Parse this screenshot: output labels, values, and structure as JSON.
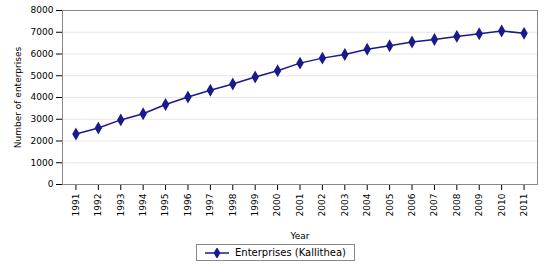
{
  "chart_data": {
    "type": "line",
    "x": [
      1991,
      1992,
      1993,
      1994,
      1995,
      1996,
      1997,
      1998,
      1999,
      2000,
      2001,
      2002,
      2003,
      2004,
      2005,
      2006,
      2007,
      2008,
      2009,
      2010,
      2011
    ],
    "series": [
      {
        "name": "Enterprises (Kallithea)",
        "color": "#1a1a8c",
        "marker": "diamond",
        "values": [
          2320,
          2600,
          2970,
          3250,
          3680,
          4020,
          4330,
          4620,
          4940,
          5230,
          5580,
          5810,
          5980,
          6220,
          6380,
          6550,
          6670,
          6810,
          6930,
          7060,
          6950
        ]
      }
    ],
    "xlabel": "Year",
    "ylabel": "Number of enterprises",
    "xlim": [
      1990.4,
      2011.6
    ],
    "xticks": [
      1991,
      1992,
      1993,
      1994,
      1995,
      1996,
      1997,
      1998,
      1999,
      2000,
      2001,
      2002,
      2003,
      2004,
      2005,
      2006,
      2007,
      2008,
      2009,
      2010,
      2011
    ],
    "ylim": [
      0,
      8000
    ],
    "yticks": [
      0,
      1000,
      2000,
      3000,
      4000,
      5000,
      6000,
      7000,
      8000
    ],
    "grid": "y",
    "legend": "bottom"
  }
}
